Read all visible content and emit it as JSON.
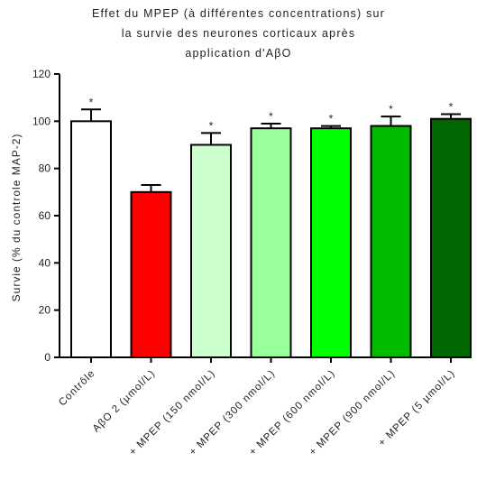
{
  "chart_data": {
    "type": "bar",
    "title_lines": [
      "Effet du MPEP (à différentes concentrations) sur",
      "la survie des neurones corticaux après",
      "application d'AβO"
    ],
    "xlabel": "",
    "ylabel": "Survie (% du controle MAP-2)",
    "ylim": [
      0,
      120
    ],
    "yticks": [
      0,
      20,
      40,
      60,
      80,
      100,
      120
    ],
    "grid": false,
    "categories": [
      "Contrôle",
      "AβO 2 (µmol/L)",
      "+ MPEP (150 nmol/L)",
      "+ MPEP (300 nmol/L)",
      "+ MPEP (600 nmol/L)",
      "+ MPEP (900 nmol/L)",
      "+ MPEP (5 µmol/L)"
    ],
    "values": [
      100,
      70,
      90,
      97,
      97,
      98,
      101
    ],
    "errors": [
      5,
      3,
      5,
      2,
      1,
      4,
      2
    ],
    "significance": [
      "*",
      "",
      "*",
      "*",
      "*",
      "*",
      "*"
    ],
    "colors": [
      "#ffffff",
      "#ff0000",
      "#ccffcc",
      "#99ff99",
      "#00ff00",
      "#00bb00",
      "#006600"
    ]
  }
}
